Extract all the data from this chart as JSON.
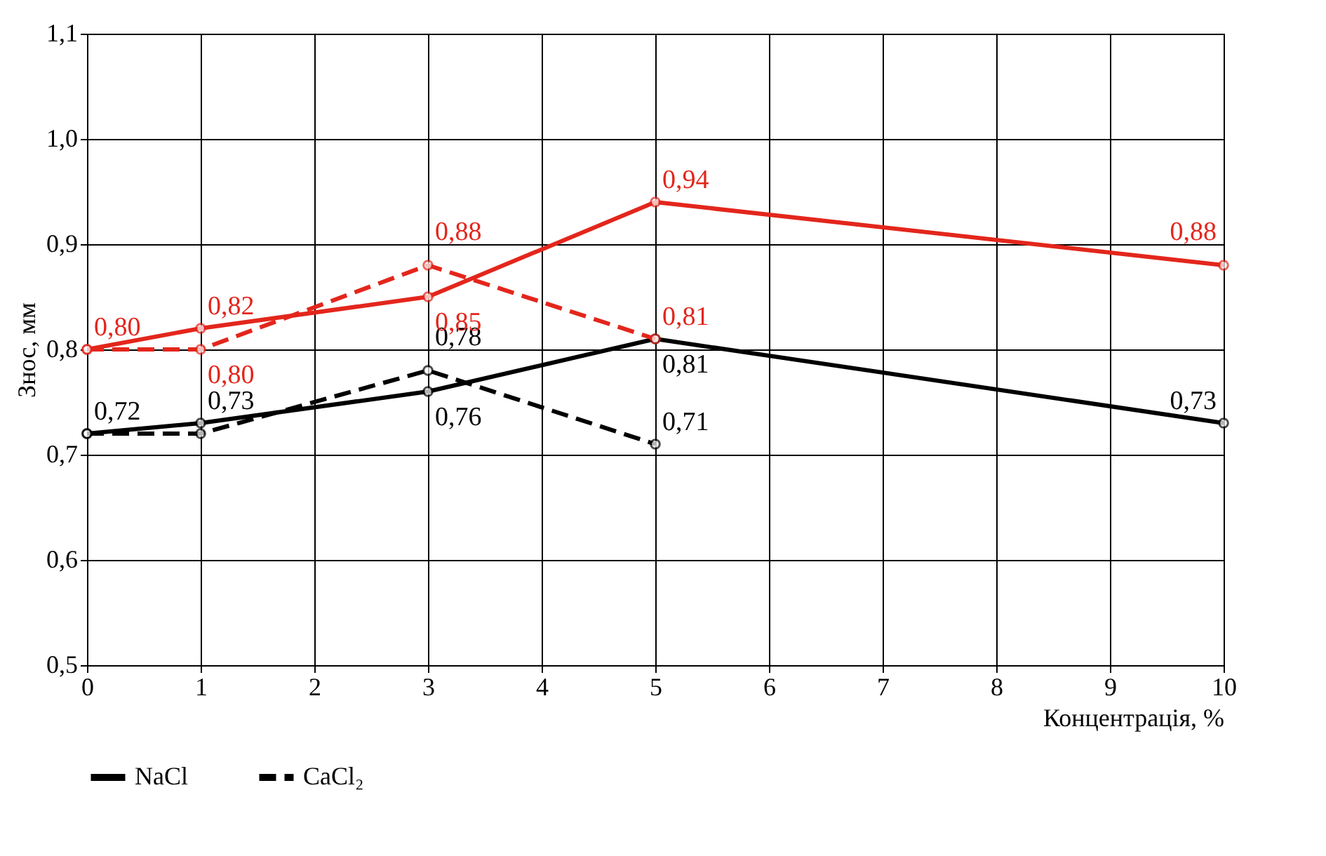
{
  "chart_data": {
    "type": "line",
    "xlabel": "Концентрація, %",
    "ylabel": "Знос, мм",
    "x": [
      0,
      1,
      3,
      5,
      10
    ],
    "series": [
      {
        "name": "NaCl",
        "color": "#000000",
        "line_style": "solid",
        "values": [
          0.72,
          0.73,
          0.76,
          0.81,
          0.73
        ],
        "value_labels": [
          "0,72",
          "0,73",
          "0,76",
          "0,81",
          "0,73"
        ]
      },
      {
        "name": "CaCl₂",
        "color": "#000000",
        "line_style": "dashed",
        "x": [
          0,
          1,
          3,
          5
        ],
        "values": [
          0.72,
          0.72,
          0.78,
          0.71
        ],
        "value_labels": [
          null,
          null,
          "0,78",
          "0,71"
        ]
      },
      {
        "color": "#e3261c",
        "line_style": "solid",
        "values": [
          0.8,
          0.82,
          0.85,
          0.94,
          0.88
        ],
        "value_labels": [
          "0,80",
          "0,82",
          "0,85",
          "0,94",
          "0,88"
        ]
      },
      {
        "color": "#e3261c",
        "line_style": "dashed",
        "x": [
          0,
          1,
          3,
          5
        ],
        "values": [
          0.8,
          0.8,
          0.88,
          0.81
        ],
        "value_labels": [
          null,
          "0,80",
          "0,88",
          "0,81"
        ]
      }
    ],
    "xlim": [
      0,
      10
    ],
    "xticks": [
      0,
      1,
      2,
      3,
      4,
      5,
      6,
      7,
      8,
      9,
      10
    ],
    "ylim": [
      0.5,
      1.1
    ],
    "yticks": [
      {
        "value": 0.5,
        "label": "0,5"
      },
      {
        "value": 0.6,
        "label": "0,6"
      },
      {
        "value": 0.7,
        "label": "0,7"
      },
      {
        "value": 0.8,
        "label": "0,8"
      },
      {
        "value": 0.9,
        "label": "0,9"
      },
      {
        "value": 1.0,
        "label": "1,0"
      },
      {
        "value": 1.1,
        "label": "1,1"
      }
    ],
    "grid": true,
    "legend": "bottom",
    "marker": "circle"
  }
}
